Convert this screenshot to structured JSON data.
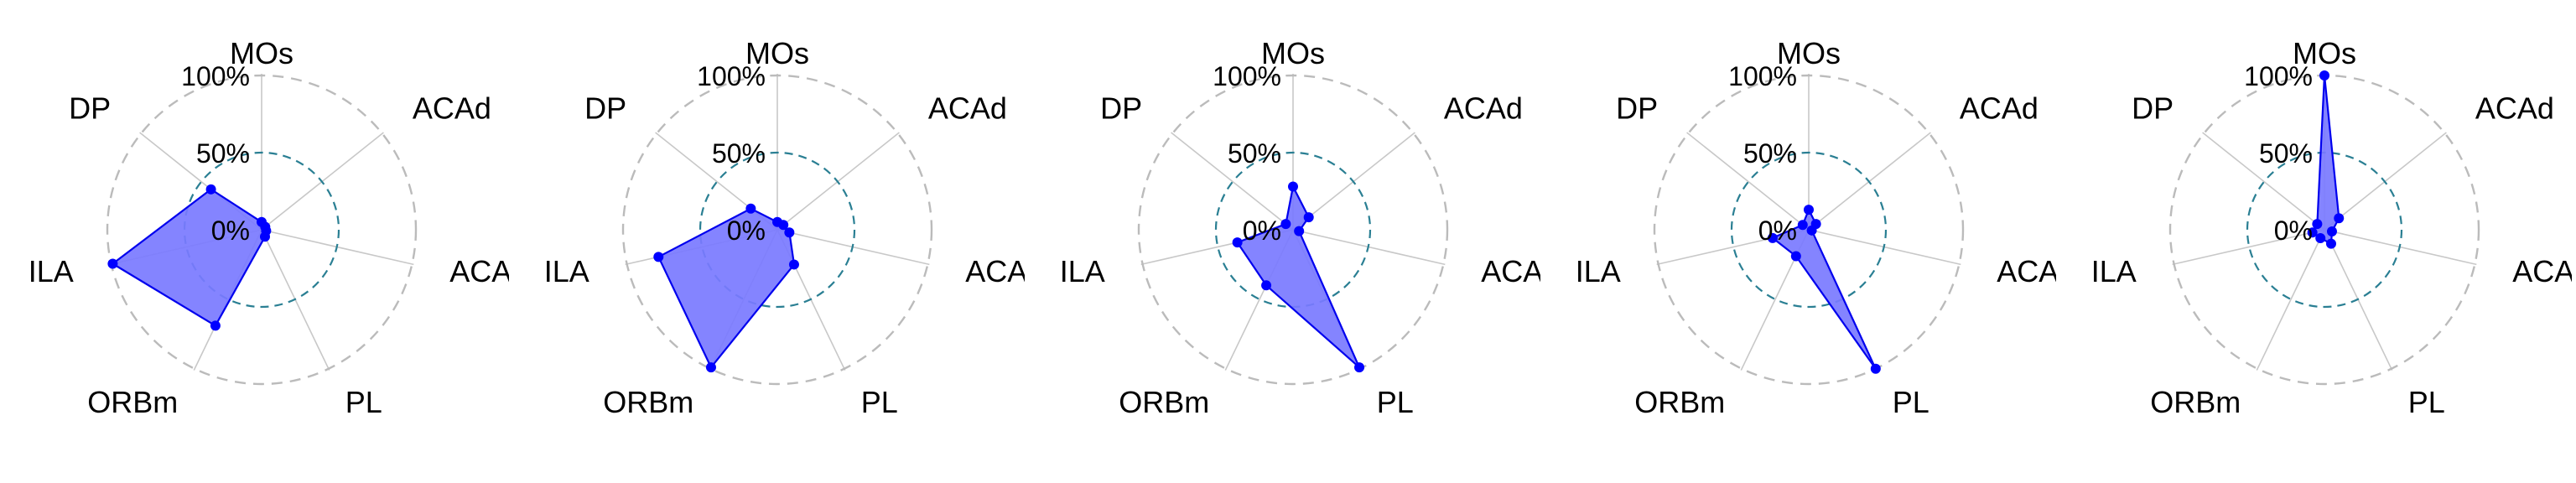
{
  "chart_data": [
    {
      "type": "radar",
      "axes": [
        "MOs",
        "ACAd",
        "ACAv",
        "PL",
        "ORBm",
        "ILA",
        "DP"
      ],
      "rlabels": [
        "100%",
        "50%",
        "0%"
      ],
      "values": [
        5,
        3,
        3,
        5,
        69,
        99,
        42
      ]
    },
    {
      "type": "radar",
      "axes": [
        "MOs",
        "ACAd",
        "ACAv",
        "PL",
        "ORBm",
        "ILA",
        "DP"
      ],
      "rlabels": [
        "100%",
        "50%",
        "0%"
      ],
      "values": [
        5,
        5,
        8,
        25,
        99,
        79,
        22
      ]
    },
    {
      "type": "radar",
      "axes": [
        "MOs",
        "ACAd",
        "ACAv",
        "PL",
        "ORBm",
        "ILA",
        "DP"
      ],
      "rlabels": [
        "100%",
        "50%",
        "0%"
      ],
      "values": [
        28,
        13,
        4,
        99,
        40,
        37,
        6
      ]
    },
    {
      "type": "radar",
      "axes": [
        "MOs",
        "ACAd",
        "ACAv",
        "PL",
        "ORBm",
        "ILA",
        "DP"
      ],
      "rlabels": [
        "100%",
        "50%",
        "0%"
      ],
      "values": [
        13,
        6,
        2,
        100,
        19,
        24,
        5
      ]
    },
    {
      "type": "radar",
      "axes": [
        "MOs",
        "ACAd",
        "ACAv",
        "PL",
        "ORBm",
        "ILA",
        "DP"
      ],
      "rlabels": [
        "100%",
        "50%",
        "0%"
      ],
      "values": [
        100,
        12,
        5,
        10,
        6,
        8,
        6
      ]
    }
  ],
  "colors": {
    "fill": "#7a7aff",
    "stroke": "#0000ee",
    "point": "#0000ff",
    "outer_ring": "#bbbbbb",
    "mid_ring": "#2a7f93",
    "spokes": "#c8c8c8"
  }
}
